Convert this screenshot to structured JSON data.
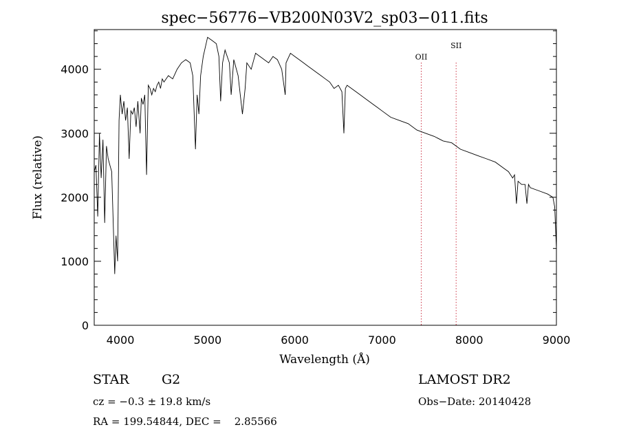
{
  "chart_data": {
    "type": "line",
    "title": "spec−56776−VB200N03V2_sp03−011.fits",
    "xlabel": "Wavelength (Å)",
    "ylabel": "Flux (relative)",
    "xlim": [
      3700,
      9000
    ],
    "ylim": [
      0,
      4620
    ],
    "xticks": [
      4000,
      5000,
      6000,
      7000,
      8000,
      9000
    ],
    "yticks": [
      0,
      1000,
      2000,
      3000,
      4000
    ],
    "grid": false,
    "series": [
      {
        "x": [
          3700,
          3720,
          3740,
          3760,
          3780,
          3800,
          3820,
          3840,
          3860,
          3880,
          3900,
          3920,
          3935,
          3950,
          3968,
          3985,
          4000,
          4020,
          4040,
          4060,
          4080,
          4101,
          4120,
          4140,
          4160,
          4180,
          4200,
          4226,
          4240,
          4260,
          4280,
          4300,
          4320,
          4340,
          4360,
          4380,
          4400,
          4420,
          4440,
          4460,
          4480,
          4500,
          4550,
          4600,
          4650,
          4700,
          4750,
          4800,
          4830,
          4861,
          4880,
          4900,
          4920,
          4950,
          5000,
          5050,
          5100,
          5130,
          5150,
          5172,
          5200,
          5250,
          5270,
          5300,
          5350,
          5400,
          5430,
          5450,
          5500,
          5550,
          5600,
          5650,
          5700,
          5750,
          5800,
          5850,
          5890,
          5900,
          5950,
          6000,
          6050,
          6100,
          6150,
          6200,
          6250,
          6300,
          6350,
          6400,
          6450,
          6500,
          6540,
          6563,
          6580,
          6600,
          6650,
          6700,
          6750,
          6800,
          6850,
          6900,
          6950,
          7000,
          7100,
          7200,
          7300,
          7400,
          7500,
          7600,
          7700,
          7800,
          7900,
          8000,
          8100,
          8200,
          8300,
          8400,
          8450,
          8498,
          8520,
          8542,
          8560,
          8600,
          8640,
          8662,
          8680,
          8700,
          8800,
          8900,
          8960,
          8980,
          9000
        ],
        "y": [
          2400,
          2500,
          1700,
          3000,
          2300,
          2900,
          1600,
          2800,
          2600,
          2500,
          2400,
          1500,
          800,
          1400,
          1000,
          3200,
          3600,
          3300,
          3500,
          3200,
          3400,
          2600,
          3350,
          3300,
          3400,
          3100,
          3500,
          3000,
          3550,
          3450,
          3600,
          2350,
          3750,
          3700,
          3600,
          3700,
          3650,
          3750,
          3800,
          3700,
          3850,
          3800,
          3900,
          3850,
          4000,
          4100,
          4150,
          4100,
          3900,
          2750,
          3600,
          3300,
          3900,
          4200,
          4500,
          4450,
          4400,
          4200,
          3500,
          4100,
          4300,
          4100,
          3600,
          4150,
          3900,
          3300,
          3700,
          4100,
          4000,
          4250,
          4200,
          4150,
          4100,
          4200,
          4150,
          4000,
          3600,
          4100,
          4250,
          4200,
          4150,
          4100,
          4050,
          4000,
          3950,
          3900,
          3850,
          3800,
          3700,
          3750,
          3650,
          3000,
          3700,
          3750,
          3700,
          3650,
          3600,
          3550,
          3500,
          3450,
          3400,
          3350,
          3250,
          3200,
          3150,
          3050,
          3000,
          2950,
          2880,
          2850,
          2750,
          2700,
          2650,
          2600,
          2550,
          2450,
          2400,
          2300,
          2350,
          1900,
          2250,
          2200,
          2200,
          1900,
          2200,
          2150,
          2100,
          2050,
          2000,
          1850,
          1200
        ]
      }
    ],
    "annotations": [
      {
        "label": "OII",
        "x": 7450,
        "label_y": 4150
      },
      {
        "label": "SII",
        "x": 7850,
        "label_y": 4330
      }
    ]
  },
  "info": {
    "object_class": "STAR",
    "subclass": "G2",
    "survey": "LAMOST DR2",
    "velocity": "cz = −0.3 ± 19.8 km/s",
    "obs_date": "Obs−Date: 20140428",
    "coords": "RA = 199.54844, DEC =    2.85566"
  },
  "colors": {
    "line": "#000000",
    "marker": "#cc3344"
  }
}
